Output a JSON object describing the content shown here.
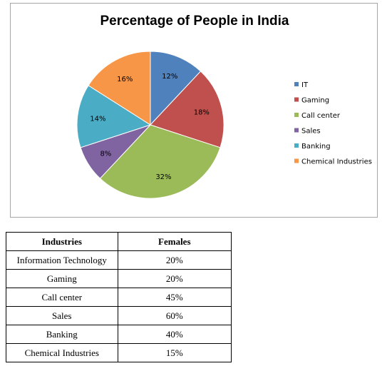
{
  "chart_data": {
    "type": "pie",
    "title": "Percentage of People in India",
    "categories": [
      "IT",
      "Gaming",
      "Call center",
      "Sales",
      "Banking",
      "Chemical Industries"
    ],
    "values": [
      12,
      18,
      32,
      8,
      14,
      16
    ],
    "value_labels": [
      "12%",
      "18%",
      "32%",
      "8%",
      "14%",
      "16%"
    ],
    "colors": [
      "#4f81bd",
      "#c0504d",
      "#9bbb59",
      "#8064a2",
      "#4bacc6",
      "#f79646"
    ],
    "legend_position": "right"
  },
  "table": {
    "headers": [
      "Industries",
      "Females"
    ],
    "rows": [
      [
        "Information Technology",
        "20%"
      ],
      [
        "Gaming",
        "20%"
      ],
      [
        "Call center",
        "45%"
      ],
      [
        "Sales",
        "60%"
      ],
      [
        "Banking",
        "40%"
      ],
      [
        "Chemical Industries",
        "15%"
      ]
    ]
  }
}
